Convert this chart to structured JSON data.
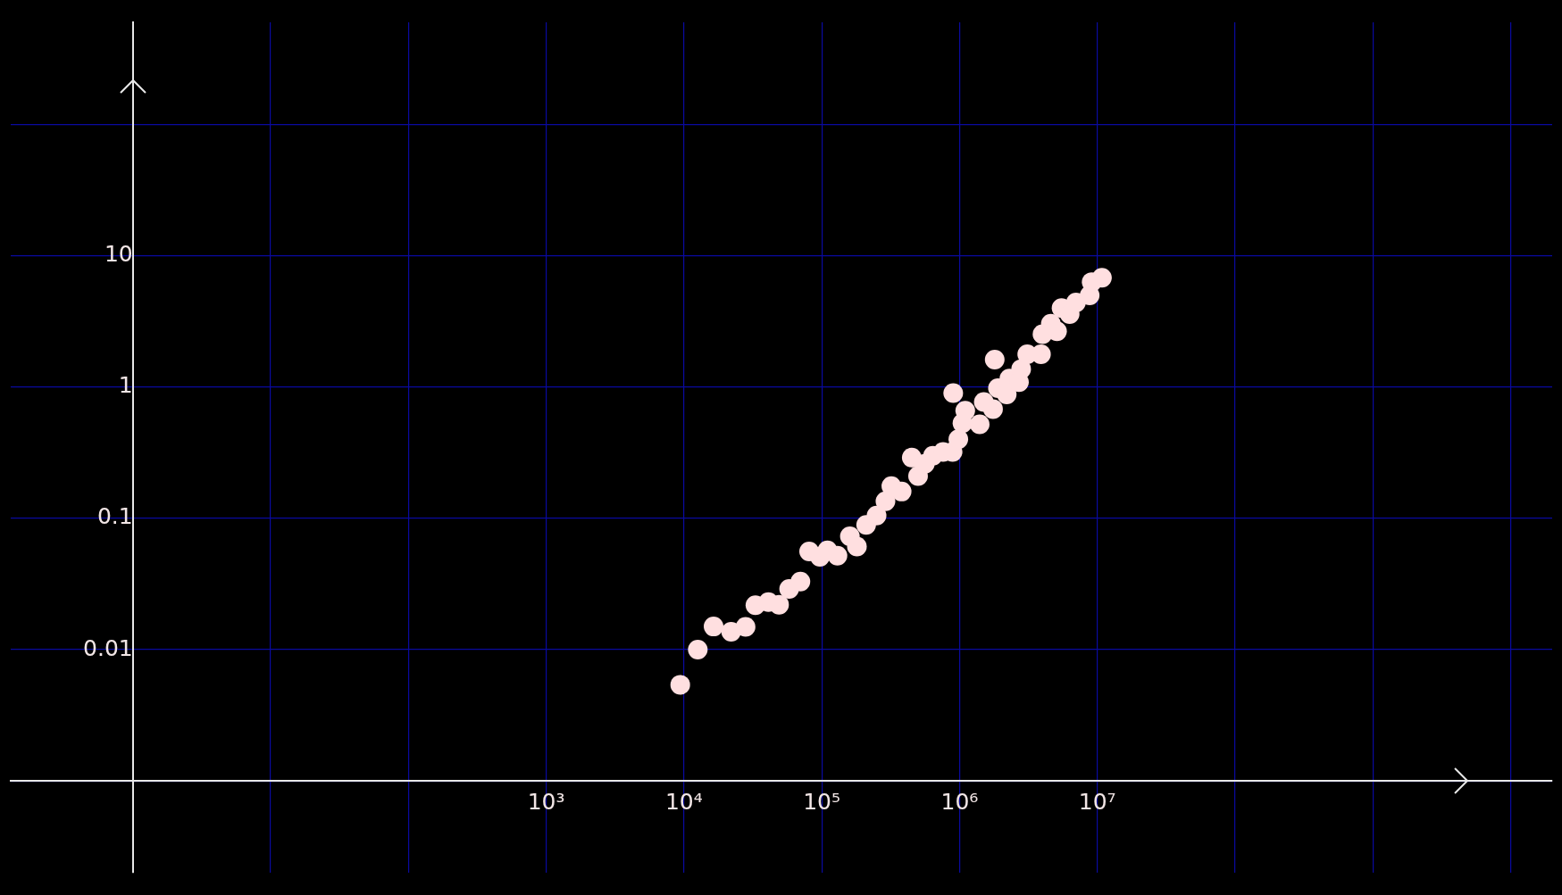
{
  "chart_data": {
    "type": "scatter",
    "marker": "circle",
    "grid": true,
    "log": "xy",
    "xlim": [
      0.13,
      20000000000.0
    ],
    "ylim": [
      0.0002,
      600
    ],
    "xticks": [
      {
        "value": 1,
        "label": null
      },
      {
        "value": 10,
        "label": null
      },
      {
        "value": 100,
        "label": null
      },
      {
        "value": 1000,
        "label": "10³"
      },
      {
        "value": 10000,
        "label": "10⁴"
      },
      {
        "value": 100000,
        "label": "10⁵"
      },
      {
        "value": 1000000,
        "label": "10⁶"
      },
      {
        "value": 10000000,
        "label": "10⁷"
      },
      {
        "value": 100000000,
        "label": null
      },
      {
        "value": 1000000000,
        "label": null
      },
      {
        "value": 10000000000,
        "label": null
      }
    ],
    "yticks": [
      {
        "value": 0.001,
        "label": null
      },
      0.01,
      0.1,
      1,
      10,
      {
        "value": 100,
        "label": null
      }
    ],
    "series": [
      {
        "color": "#ffdfe0",
        "x": [
          9400,
          12600,
          16400,
          22000,
          28000,
          33000,
          41000,
          49000,
          58000,
          70000,
          81000,
          97000,
          110000,
          130000,
          160000,
          180000,
          210000,
          250000,
          290000,
          320000,
          380000,
          450000,
          500000,
          560000,
          640000,
          760000,
          890000,
          900000,
          980000,
          1050000,
          1100000,
          1400000,
          1500000,
          1750000,
          1800000,
          1900000,
          2200000,
          2300000,
          2700000,
          2800000,
          3100000,
          3900000,
          4000000,
          4600000,
          5100000,
          5500000,
          6300000,
          7000000,
          8800000,
          9100000,
          10800000
        ],
        "values": [
          0.0054,
          0.01,
          0.015,
          0.0137,
          0.0149,
          0.0218,
          0.023,
          0.022,
          0.029,
          0.033,
          0.056,
          0.051,
          0.057,
          0.052,
          0.073,
          0.061,
          0.089,
          0.105,
          0.135,
          0.176,
          0.16,
          0.29,
          0.21,
          0.26,
          0.3,
          0.32,
          0.32,
          0.9,
          0.4,
          0.53,
          0.66,
          0.52,
          0.77,
          0.68,
          1.62,
          0.98,
          0.88,
          1.16,
          1.09,
          1.37,
          1.78,
          1.78,
          2.53,
          3.04,
          2.66,
          4.0,
          3.6,
          4.4,
          5.0,
          6.3,
          6.8
        ]
      }
    ]
  }
}
